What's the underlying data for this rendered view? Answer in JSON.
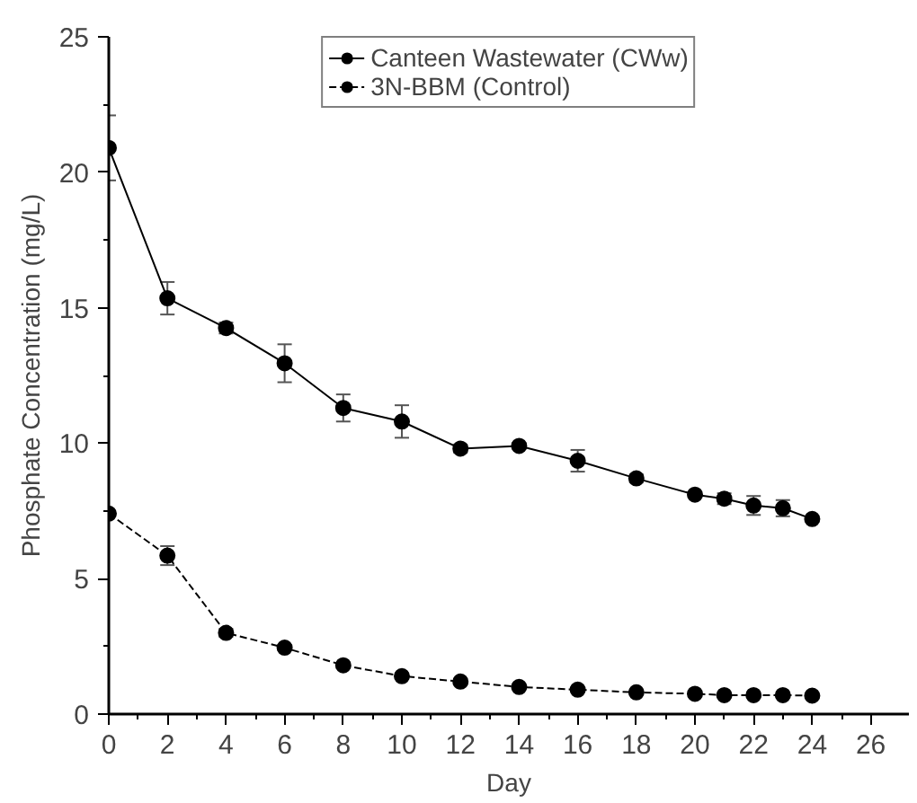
{
  "chart_data": {
    "type": "line",
    "xlabel": "Day",
    "ylabel": "Phosphate Concentration (mg/L)",
    "x": [
      0,
      2,
      4,
      6,
      8,
      10,
      12,
      14,
      16,
      18,
      20,
      21,
      22,
      23,
      24
    ],
    "series": [
      {
        "name": "Canteen Wastewater (CWw)",
        "color": "#000000",
        "line_style": "solid",
        "values": [
          20.9,
          15.35,
          14.25,
          12.95,
          11.3,
          10.8,
          9.8,
          9.9,
          9.35,
          8.7,
          8.1,
          7.95,
          7.7,
          7.6,
          7.2
        ],
        "errors": [
          1.2,
          0.6,
          0.2,
          0.7,
          0.5,
          0.6,
          0.15,
          0.1,
          0.4,
          0.15,
          0.1,
          0.2,
          0.35,
          0.3,
          0.1
        ]
      },
      {
        "name": "3N-BBM (Control)",
        "color": "#000000",
        "line_style": "dashed",
        "values": [
          7.4,
          5.85,
          3.0,
          2.45,
          1.8,
          1.4,
          1.2,
          1.0,
          0.9,
          0.8,
          0.75,
          0.7,
          0.7,
          0.7,
          0.68
        ],
        "errors": [
          0.1,
          0.35,
          0.15,
          0.1,
          0.1,
          0.1,
          0.1,
          0.05,
          0.05,
          0.05,
          0.05,
          0.05,
          0.05,
          0.05,
          0.05
        ]
      }
    ],
    "xlim": [
      0,
      27.3
    ],
    "ylim": [
      0,
      25
    ],
    "xticks": [
      0,
      2,
      4,
      6,
      8,
      10,
      12,
      14,
      16,
      18,
      20,
      22,
      24,
      26
    ],
    "yticks": [
      0,
      5,
      10,
      15,
      20,
      25
    ],
    "grid": false,
    "legend": "top",
    "marker": "circle"
  }
}
